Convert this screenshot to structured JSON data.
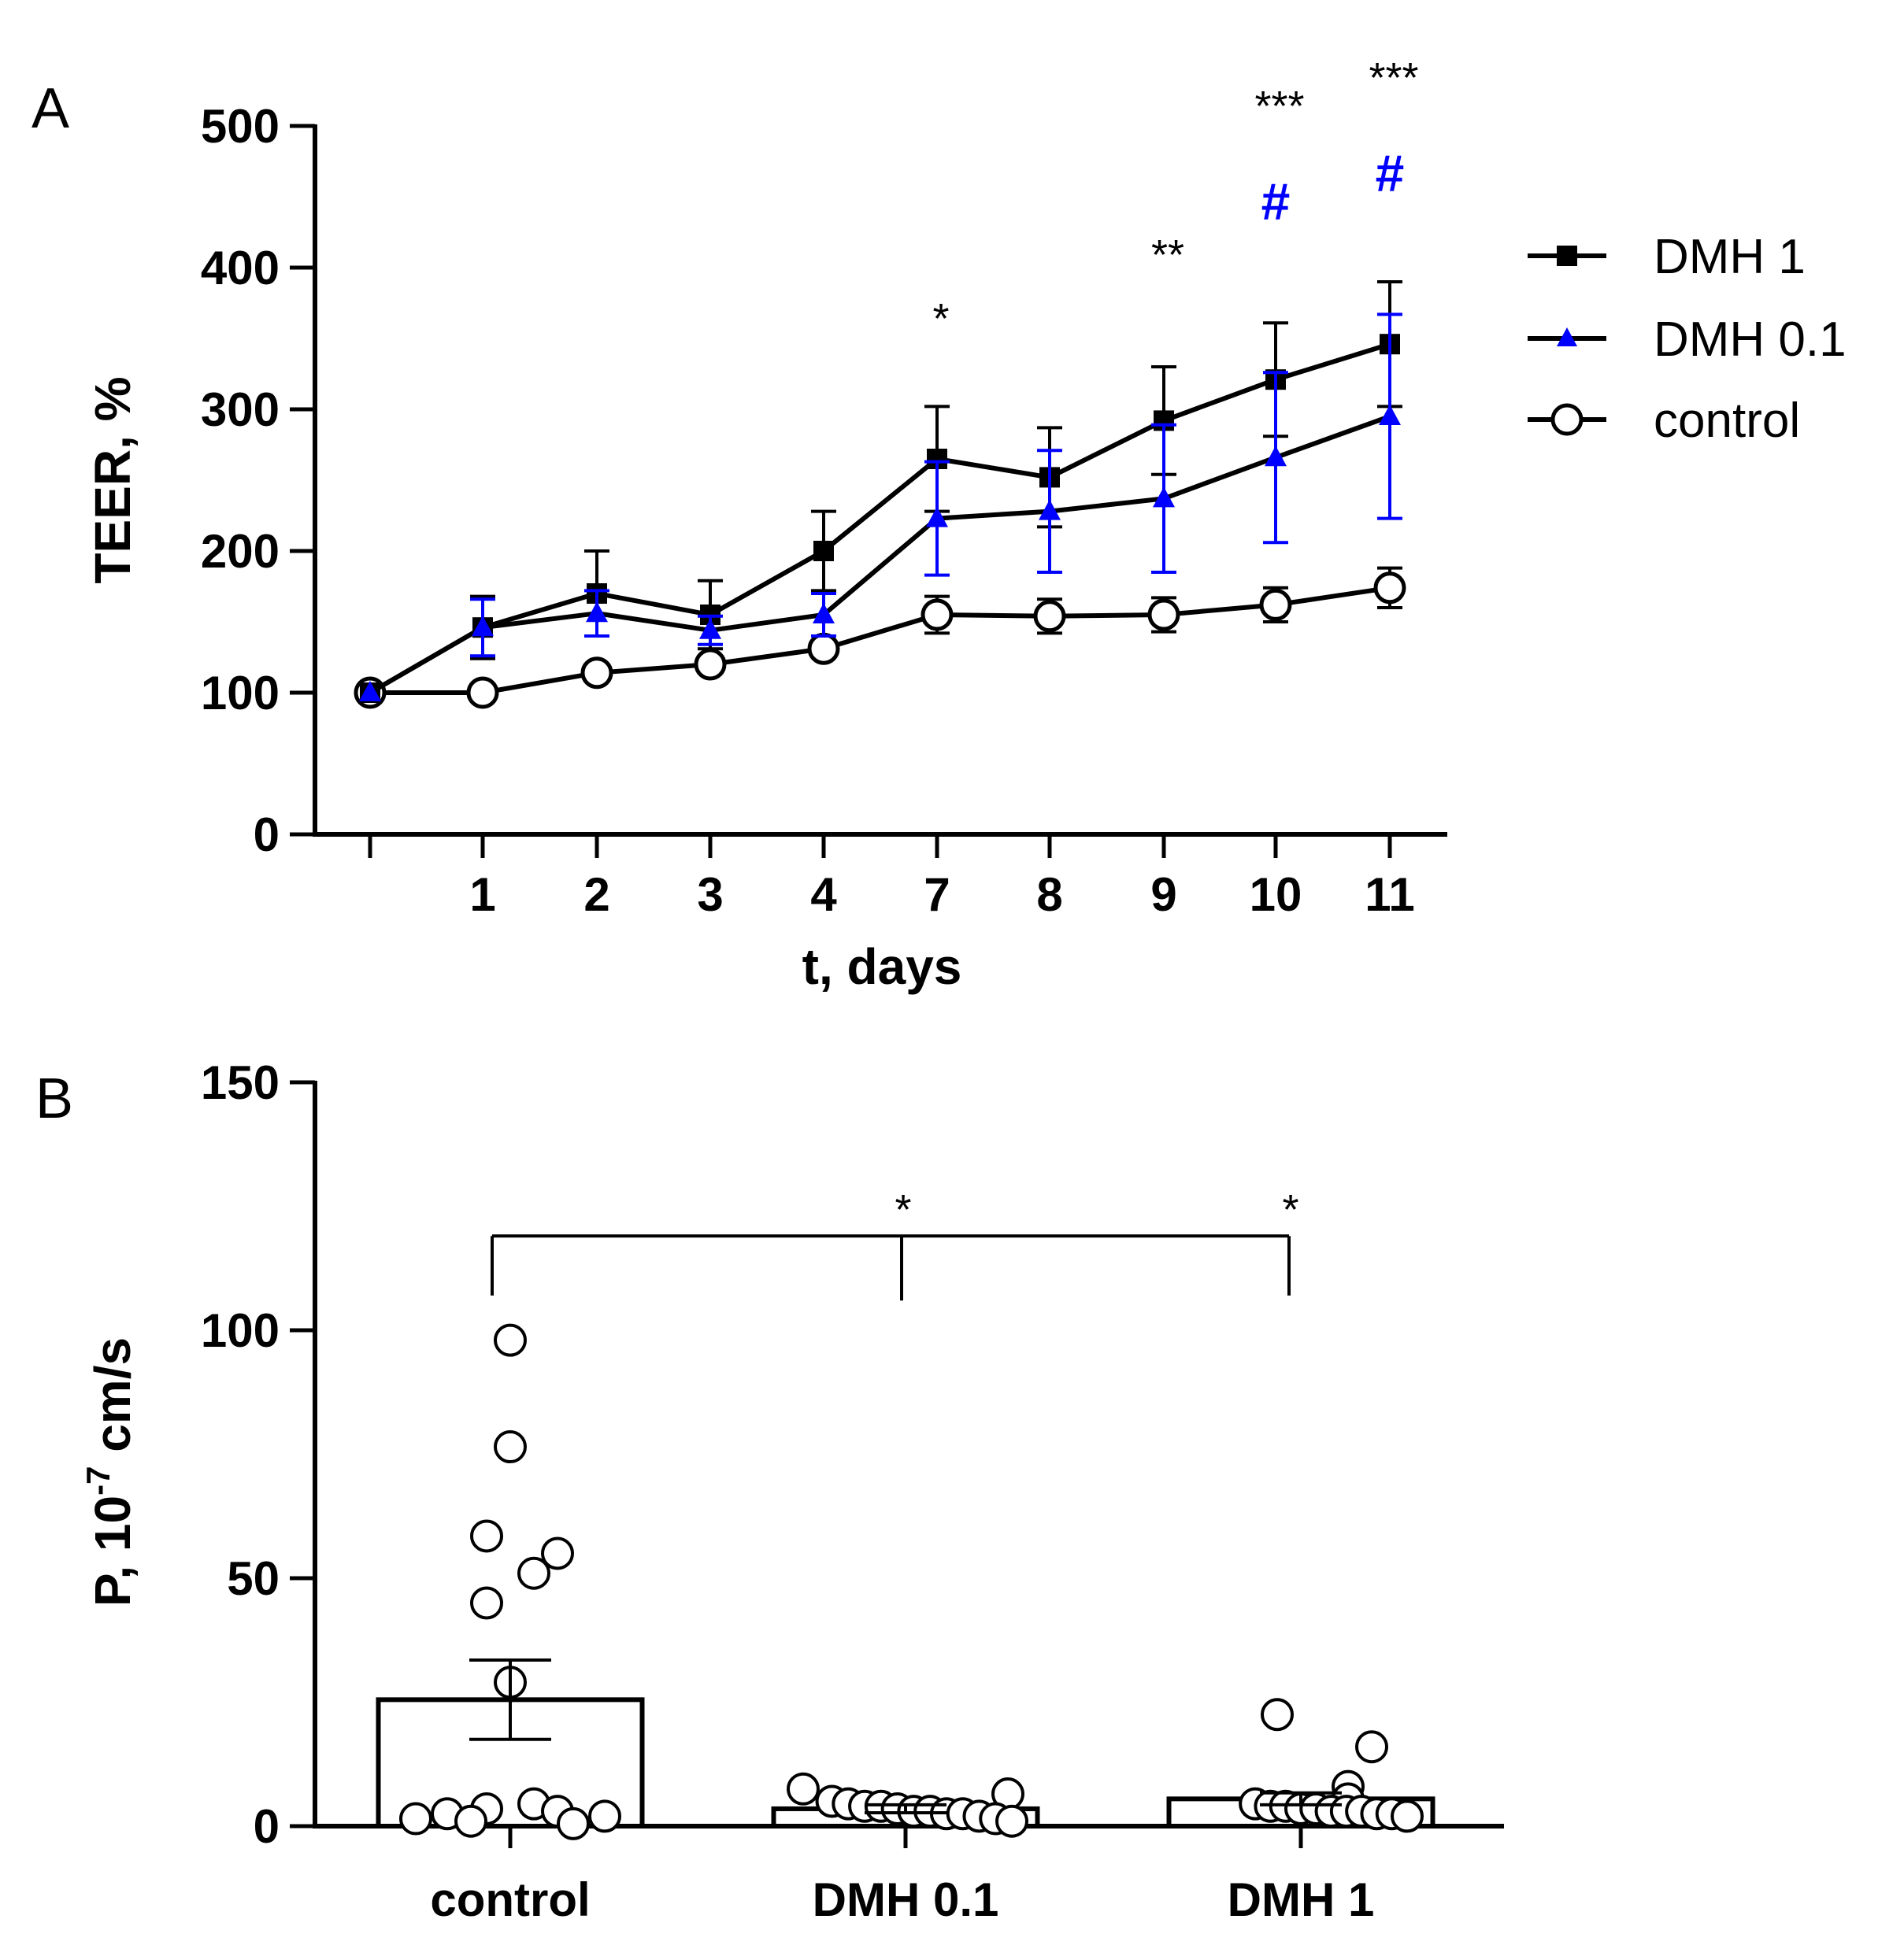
{
  "panel_labels": {
    "a": "A",
    "b": "B"
  },
  "colors": {
    "black": "#000000",
    "blue": "#0000ff"
  },
  "chart_data": [
    {
      "type": "line",
      "panel": "A",
      "xlabel": "t, days",
      "ylabel": "TEER, %",
      "ylim": [
        0,
        500
      ],
      "yticks": [
        "0",
        "100",
        "200",
        "300",
        "400",
        "500"
      ],
      "x_positions": [
        "0",
        "1",
        "2",
        "3",
        "4",
        "7",
        "8",
        "9",
        "10",
        "11"
      ],
      "xticks": [
        "",
        "1",
        "2",
        "3",
        "4",
        "7",
        "8",
        "9",
        "10",
        "11"
      ],
      "series": [
        {
          "name": "DMH 1",
          "color": "#000000",
          "marker": "square",
          "values": [
            100,
            146,
            170,
            155,
            200,
            265,
            252,
            292,
            321,
            346
          ],
          "errors": [
            0,
            22,
            30,
            24,
            28,
            37,
            35,
            38,
            40,
            44
          ]
        },
        {
          "name": "DMH 0.1",
          "color": "#0000ff",
          "marker": "triangle",
          "values": [
            100,
            146,
            156,
            144,
            155,
            223,
            228,
            237,
            266,
            295
          ],
          "errors": [
            0,
            20,
            16,
            10,
            15,
            40,
            43,
            52,
            60,
            72
          ]
        },
        {
          "name": "control",
          "color": "#000000",
          "marker": "open-circle",
          "values": [
            100,
            100,
            114,
            120,
            131,
            155,
            154,
            155,
            162,
            174
          ],
          "errors": [
            0,
            0,
            0,
            0,
            0,
            13,
            12,
            12,
            12,
            14
          ]
        }
      ],
      "annotations": [
        {
          "text": "*",
          "x_index": 5,
          "y": 365,
          "color": "#000000"
        },
        {
          "text": "**",
          "x_index": 7,
          "y": 410,
          "color": "#000000"
        },
        {
          "text": "***",
          "x_index": 8,
          "y": 515,
          "color": "#000000"
        },
        {
          "text": "#",
          "x_index": 8,
          "y": 445,
          "color": "#0000ff"
        },
        {
          "text": "***",
          "x_index": 9,
          "y": 535,
          "color": "#000000"
        },
        {
          "text": "#",
          "x_index": 9,
          "y": 465,
          "color": "#0000ff"
        }
      ],
      "legend_position": "right"
    },
    {
      "type": "bar",
      "panel": "B",
      "xlabel": "",
      "ylabel_parts": [
        "P, 10",
        "-7",
        " cm/s"
      ],
      "ylim": [
        0,
        150
      ],
      "yticks": [
        "0",
        "50",
        "100",
        "150"
      ],
      "categories": [
        "control",
        "DMH 0.1",
        "DMH 1"
      ],
      "values": [
        25.5,
        3.5,
        5.5
      ],
      "errors": [
        8,
        0.8,
        1.2
      ],
      "points": [
        [
          98,
          76.5,
          58.5,
          55,
          51,
          45,
          29,
          4.5,
          3.5,
          3,
          2.5,
          2,
          1.5,
          1,
          0.5
        ],
        [
          7.5,
          6.5,
          5,
          4.5,
          4,
          4,
          3.5,
          3,
          3,
          2.5,
          2.5,
          2,
          1.5,
          1
        ],
        [
          22.5,
          16,
          8,
          5.5,
          4.5,
          4,
          4,
          3.5,
          3.5,
          3,
          3,
          3,
          2.5,
          2.5,
          2
        ]
      ],
      "significance": {
        "stars": [
          "*",
          "*"
        ],
        "bracket_y": 119
      }
    }
  ]
}
